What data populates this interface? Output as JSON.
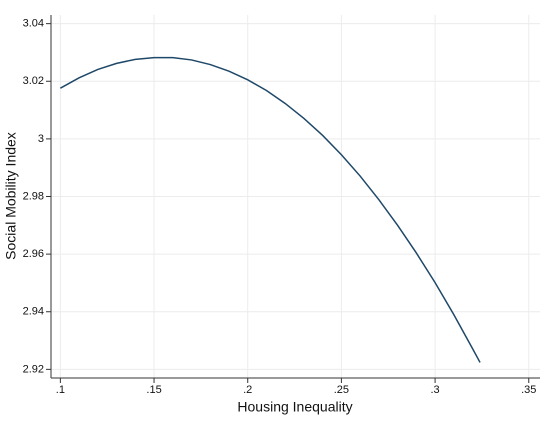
{
  "chart_data": {
    "type": "line",
    "x_label": "Housing Inequality",
    "y_label": "Social Mobility Index",
    "x": [
      0.1,
      0.11,
      0.12,
      0.13,
      0.14,
      0.15,
      0.16,
      0.17,
      0.18,
      0.19,
      0.2,
      0.21,
      0.22,
      0.23,
      0.24,
      0.25,
      0.26,
      0.27,
      0.28,
      0.29,
      0.3,
      0.31,
      0.32,
      0.324
    ],
    "series": [
      {
        "color": "#1f4868",
        "values": [
          3.0176,
          3.0212,
          3.0241,
          3.0262,
          3.0276,
          3.0282,
          3.0282,
          3.0274,
          3.0258,
          3.0235,
          3.0205,
          3.0168,
          3.0123,
          3.0071,
          3.0012,
          2.9945,
          2.9871,
          2.9789,
          2.97,
          2.9604,
          2.9501,
          2.939,
          2.9272,
          2.9224
        ]
      }
    ],
    "xlim": [
      0.095,
      0.356
    ],
    "ylim": [
      2.917,
      3.043
    ],
    "xticks": [
      {
        "value": 0.1,
        "label": ".1"
      },
      {
        "value": 0.15,
        "label": ".15"
      },
      {
        "value": 0.2,
        "label": ".2"
      },
      {
        "value": 0.25,
        "label": ".25"
      },
      {
        "value": 0.3,
        "label": ".3"
      },
      {
        "value": 0.35,
        "label": ".35"
      }
    ],
    "yticks": [
      2.92,
      2.94,
      2.96,
      2.98,
      3,
      3.02,
      3.04
    ],
    "grid": true
  }
}
